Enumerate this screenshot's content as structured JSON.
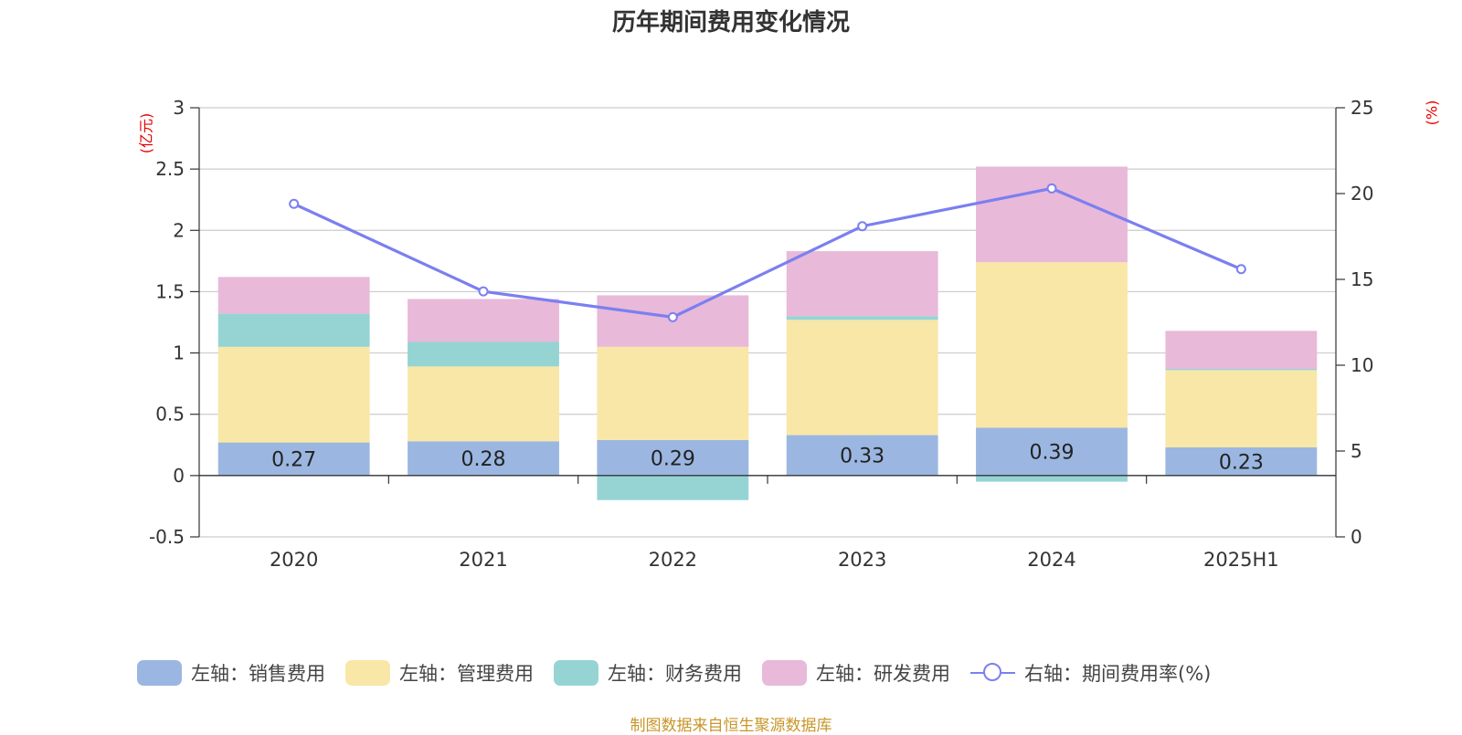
{
  "chart_data": {
    "type": "bar",
    "title": "历年期间费用变化情况",
    "categories": [
      "2020",
      "2021",
      "2022",
      "2023",
      "2024",
      "2025H1"
    ],
    "stacked": true,
    "y_left": {
      "unit": "(亿元)",
      "ylim": [
        -0.5,
        3
      ],
      "ticks": [
        -0.5,
        0,
        0.5,
        1,
        1.5,
        2,
        2.5,
        3
      ],
      "tick_labels": [
        "-0.5",
        "0",
        "0.5",
        "1",
        "1.5",
        "2",
        "2.5",
        "3"
      ]
    },
    "y_right": {
      "unit": "(%)",
      "ylim": [
        0,
        25
      ],
      "ticks": [
        0,
        5,
        10,
        15,
        20,
        25
      ],
      "tick_labels": [
        "0",
        "5",
        "10",
        "15",
        "20",
        "25"
      ]
    },
    "grid": true,
    "series": [
      {
        "name": "左轴：销售费用",
        "type": "bar",
        "axis": "left",
        "color": "#9bb7e1",
        "values": [
          0.27,
          0.28,
          0.29,
          0.33,
          0.39,
          0.23
        ],
        "labels": [
          "0.27",
          "0.28",
          "0.29",
          "0.33",
          "0.39",
          "0.23"
        ]
      },
      {
        "name": "左轴：管理费用",
        "type": "bar",
        "axis": "left",
        "color": "#f8e7a7",
        "values": [
          0.78,
          0.61,
          0.76,
          0.94,
          1.35,
          0.63
        ]
      },
      {
        "name": "左轴：财务费用",
        "type": "bar",
        "axis": "left",
        "color": "#96d4d4",
        "values": [
          0.27,
          0.2,
          -0.2,
          0.03,
          -0.05,
          0.01
        ]
      },
      {
        "name": "左轴：研发费用",
        "type": "bar",
        "axis": "left",
        "color": "#e8b9d9",
        "values": [
          0.3,
          0.35,
          0.42,
          0.53,
          0.78,
          0.31
        ]
      },
      {
        "name": "右轴：期间费用率(%)",
        "type": "line",
        "axis": "right",
        "color": "#7b7ff0",
        "values": [
          19.4,
          14.3,
          12.8,
          18.1,
          20.3,
          15.6
        ]
      }
    ],
    "legend_position": "bottom",
    "source": "制图数据来自恒生聚源数据库"
  }
}
